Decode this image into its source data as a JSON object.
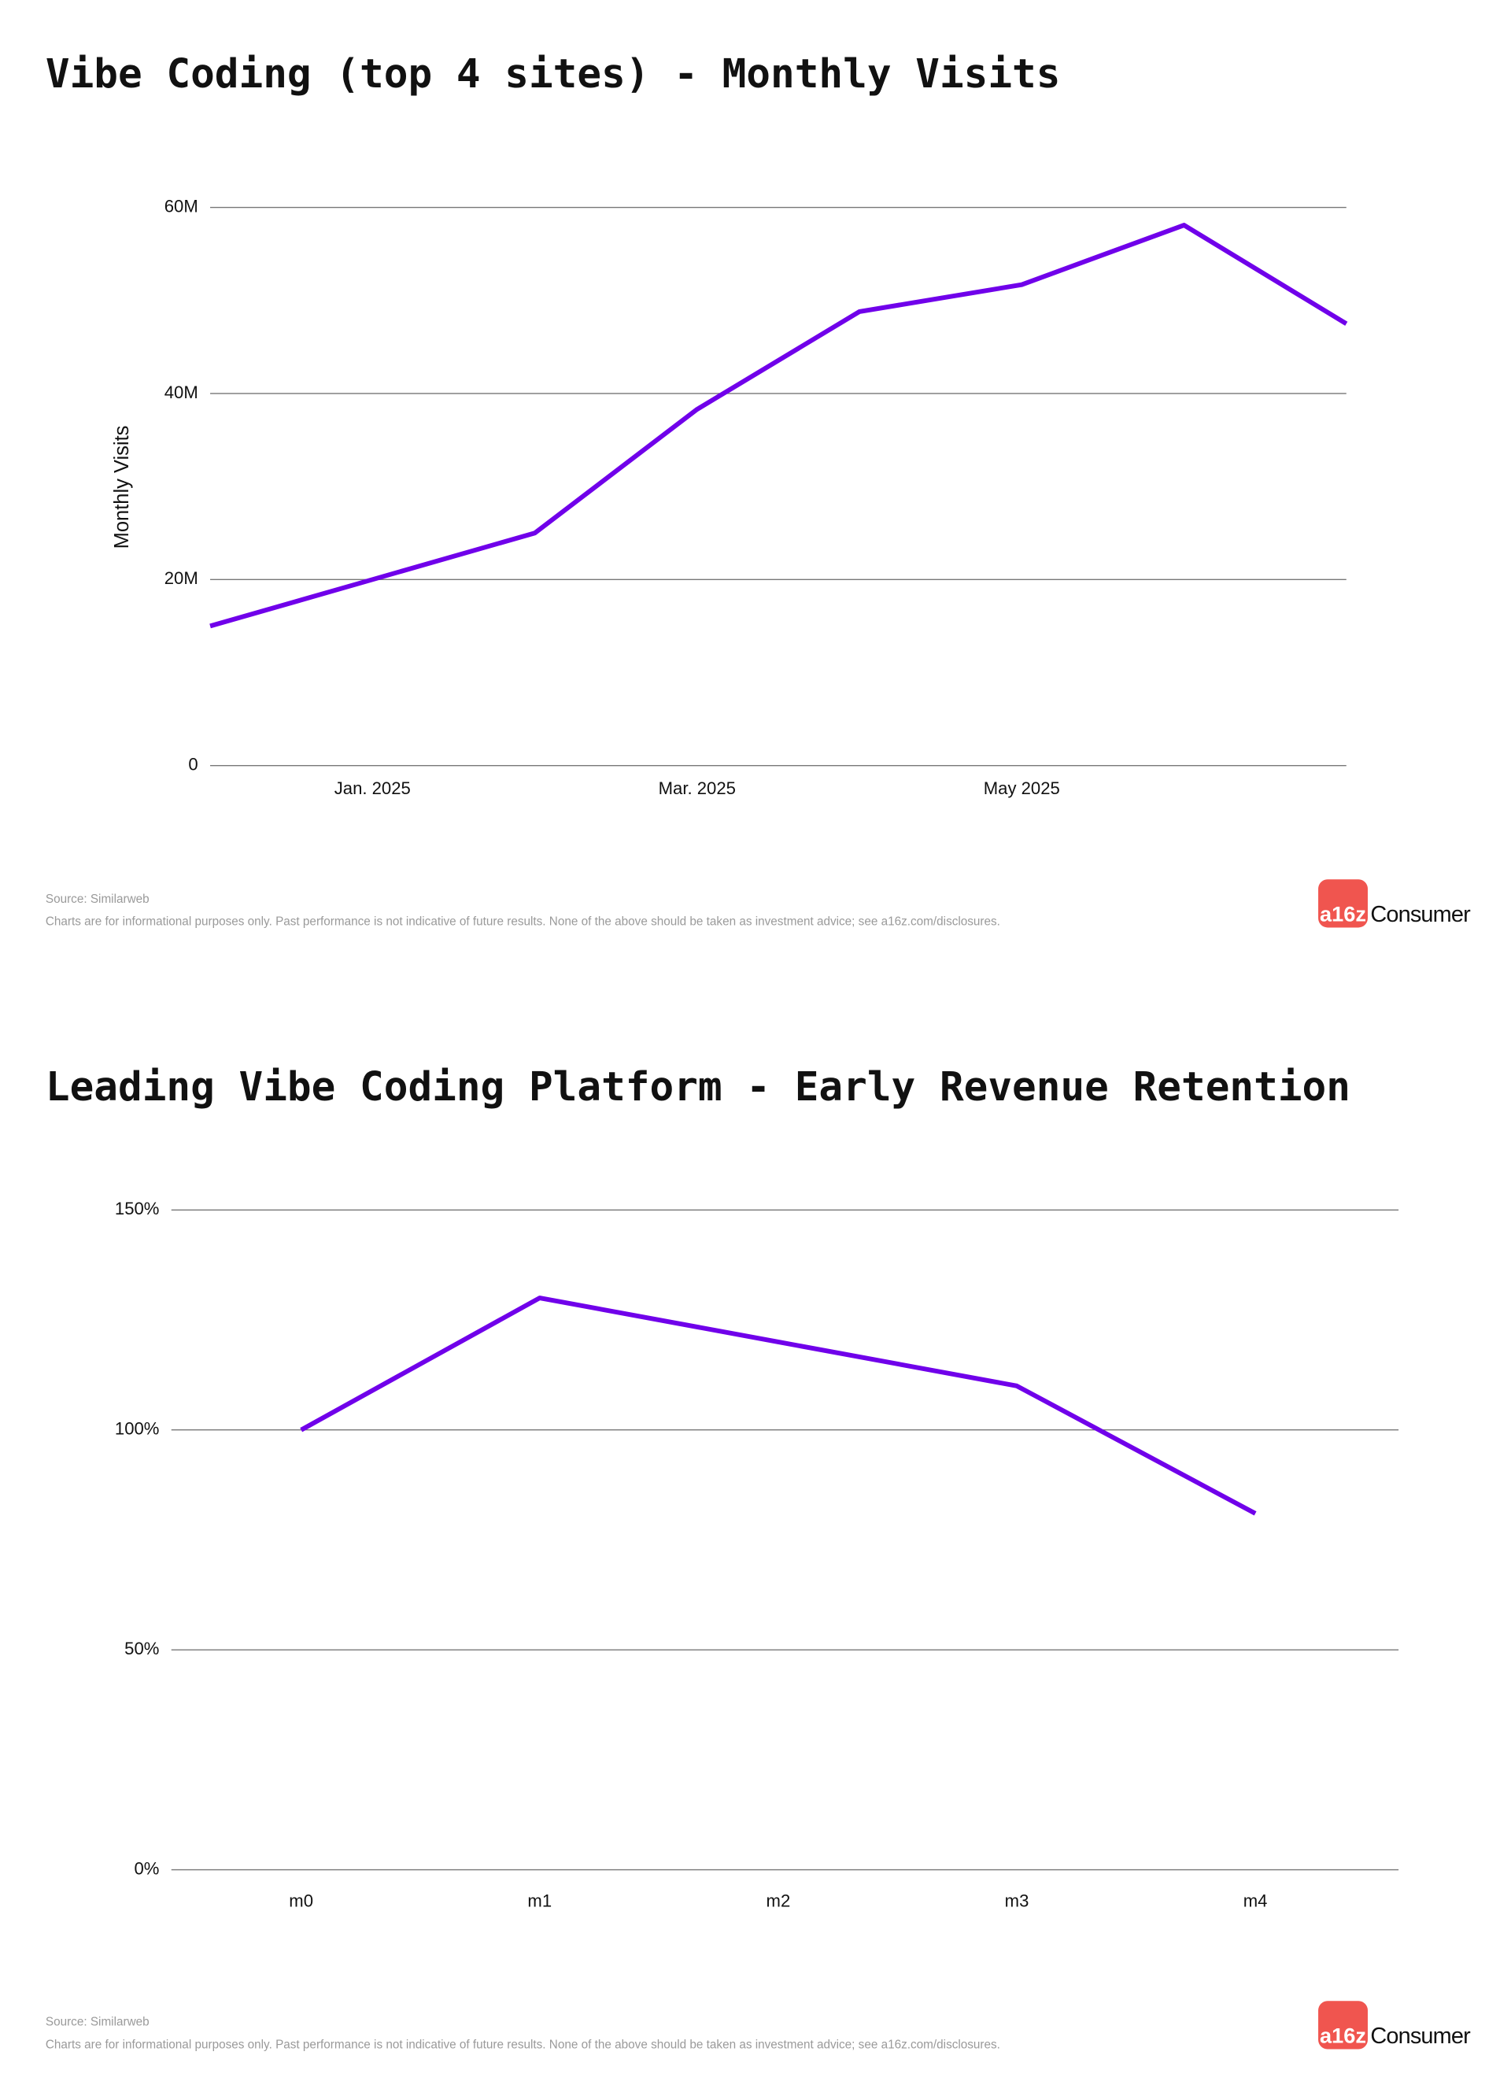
{
  "chart_data": [
    {
      "type": "line",
      "title": "Vibe Coding (top 4 sites) - Monthly Visits",
      "ylabel": "Monthly Visits",
      "categories": [
        null,
        "Jan. 2025",
        null,
        "Mar. 2025",
        null,
        "May 2025",
        null,
        null
      ],
      "series": [
        {
          "name": "Monthly Visits",
          "color": "#7000ea",
          "values": [
            15,
            20,
            25,
            38.3,
            48.8,
            51.7,
            58.1,
            47.5
          ]
        }
      ],
      "ylim": [
        0,
        60
      ],
      "yticks": [
        0,
        {
          "value": 20,
          "label": "20M"
        },
        {
          "value": 40,
          "label": "40M"
        },
        {
          "value": 60,
          "label": "60M"
        }
      ],
      "grid": true,
      "source": "Source: Similarweb",
      "note": "Charts are for informational purposes only. Past performance is not indicative of future results. None of the above should be taken as investment advice; see a16z.com/disclosures."
    },
    {
      "type": "line",
      "title": "Leading Vibe Coding Platform - Early Revenue Retention",
      "categories": [
        "m0",
        "m1",
        "m2",
        "m3",
        "m4"
      ],
      "series": [
        {
          "name": "Revenue Retention",
          "color": "#7000ea",
          "values": [
            100,
            130,
            120,
            110,
            81
          ]
        }
      ],
      "ylim": [
        0,
        150
      ],
      "yticks": [
        {
          "value": 0,
          "label": "0%"
        },
        {
          "value": 50,
          "label": "50%"
        },
        {
          "value": 100,
          "label": "100%"
        },
        {
          "value": 150,
          "label": "150%"
        }
      ],
      "grid": true,
      "source": "Source: Similarweb",
      "note": "Charts are for informational purposes only. Past performance is not indicative of future results. None of the above should be taken as investment advice; see a16z.com/disclosures."
    }
  ],
  "brand": {
    "mark": "a16z",
    "name": "Consumer"
  }
}
